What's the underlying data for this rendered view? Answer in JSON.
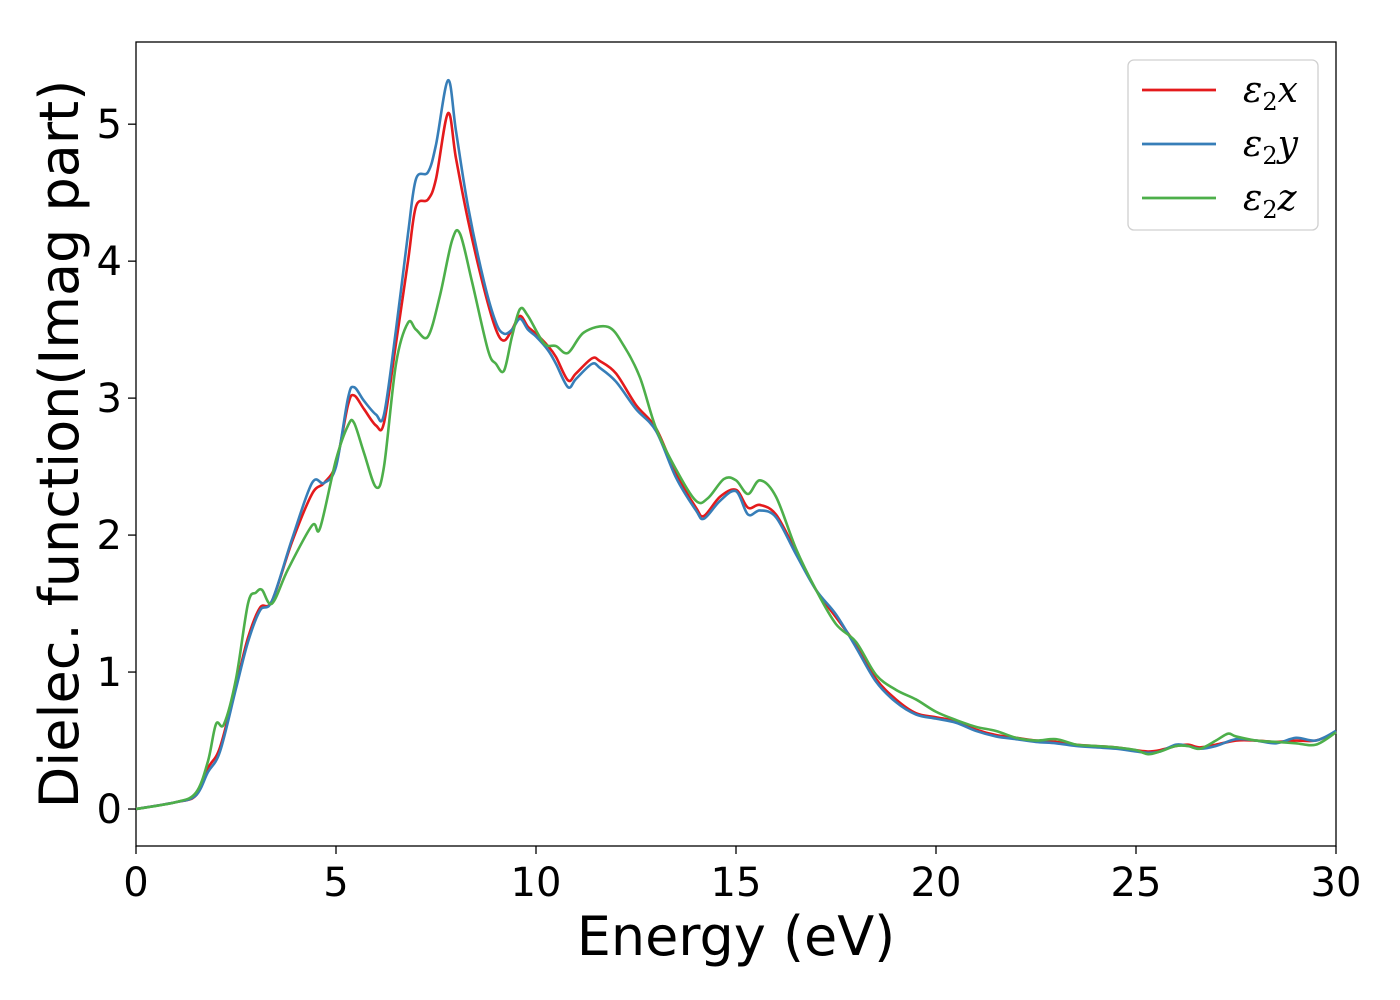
{
  "chart_data": {
    "type": "line",
    "title": "",
    "xlabel": "Energy (eV)",
    "ylabel": "Dielec. function(Imag part)",
    "xlim": [
      0,
      30
    ],
    "ylim": [
      -0.27,
      5.6
    ],
    "xticks": [
      0,
      5,
      10,
      15,
      20,
      25,
      30
    ],
    "xtick_labels": [
      "0",
      "5",
      "10",
      "15",
      "20",
      "25",
      "30"
    ],
    "yticks": [
      0,
      1,
      2,
      3,
      4,
      5
    ],
    "ytick_labels": [
      "0",
      "1",
      "2",
      "3",
      "4",
      "5"
    ],
    "grid": false,
    "legend_position": "top-right",
    "series": [
      {
        "name": "ε2x",
        "legend_base": "ε",
        "legend_sub": "2",
        "legend_suffix": "x",
        "color": "#e41a1c",
        "x": [
          0,
          1,
          1.5,
          1.8,
          2.1,
          2.5,
          2.8,
          3.1,
          3.4,
          3.9,
          4.4,
          4.7,
          5.0,
          5.3,
          5.45,
          5.7,
          6.0,
          6.2,
          6.5,
          6.8,
          7.0,
          7.3,
          7.5,
          7.8,
          8.0,
          8.3,
          8.7,
          9.0,
          9.2,
          9.4,
          9.6,
          9.8,
          10.0,
          10.3,
          10.5,
          10.8,
          11.0,
          11.4,
          11.6,
          12.0,
          12.5,
          13.0,
          13.5,
          14.0,
          14.2,
          14.6,
          15.0,
          15.3,
          15.6,
          16.0,
          16.5,
          17.0,
          17.5,
          18.0,
          18.5,
          19.0,
          19.5,
          20.0,
          20.5,
          21.0,
          21.5,
          22.0,
          22.5,
          23.0,
          23.5,
          24.0,
          24.5,
          25.0,
          25.3,
          25.6,
          26.0,
          26.3,
          26.6,
          27.0,
          27.5,
          28.0,
          28.5,
          29.0,
          29.5,
          30.0
        ],
        "y": [
          0,
          0.05,
          0.1,
          0.3,
          0.45,
          0.9,
          1.25,
          1.47,
          1.52,
          1.95,
          2.3,
          2.38,
          2.52,
          2.95,
          3.02,
          2.92,
          2.8,
          2.82,
          3.4,
          4.0,
          4.4,
          4.45,
          4.6,
          5.08,
          4.75,
          4.3,
          3.8,
          3.5,
          3.42,
          3.5,
          3.6,
          3.52,
          3.47,
          3.38,
          3.3,
          3.13,
          3.18,
          3.29,
          3.27,
          3.18,
          2.95,
          2.78,
          2.45,
          2.2,
          2.14,
          2.28,
          2.33,
          2.2,
          2.22,
          2.15,
          1.88,
          1.6,
          1.4,
          1.2,
          0.95,
          0.8,
          0.7,
          0.67,
          0.64,
          0.58,
          0.54,
          0.52,
          0.5,
          0.49,
          0.47,
          0.46,
          0.45,
          0.43,
          0.42,
          0.43,
          0.46,
          0.47,
          0.45,
          0.47,
          0.5,
          0.5,
          0.49,
          0.5,
          0.5,
          0.56
        ]
      },
      {
        "name": "ε2y",
        "legend_base": "ε",
        "legend_sub": "2",
        "legend_suffix": "y",
        "color": "#377eb8",
        "x": [
          0,
          1,
          1.5,
          1.8,
          2.1,
          2.5,
          2.8,
          3.1,
          3.4,
          3.9,
          4.4,
          4.7,
          5.0,
          5.3,
          5.45,
          5.7,
          6.0,
          6.2,
          6.5,
          6.8,
          7.0,
          7.3,
          7.5,
          7.8,
          8.0,
          8.3,
          8.7,
          9.0,
          9.2,
          9.4,
          9.6,
          9.8,
          10.0,
          10.3,
          10.5,
          10.8,
          11.0,
          11.4,
          11.6,
          12.0,
          12.5,
          13.0,
          13.5,
          14.0,
          14.2,
          14.6,
          15.0,
          15.3,
          15.6,
          16.0,
          16.5,
          17.0,
          17.5,
          18.0,
          18.5,
          19.0,
          19.5,
          20.0,
          20.5,
          21.0,
          21.5,
          22.0,
          22.5,
          23.0,
          23.5,
          24.0,
          24.5,
          25.0,
          25.3,
          25.6,
          26.0,
          26.3,
          26.6,
          27.0,
          27.5,
          28.0,
          28.5,
          29.0,
          29.5,
          30.0
        ],
        "y": [
          0,
          0.05,
          0.1,
          0.27,
          0.42,
          0.88,
          1.22,
          1.45,
          1.52,
          1.97,
          2.38,
          2.38,
          2.5,
          3.0,
          3.08,
          2.98,
          2.88,
          2.88,
          3.5,
          4.2,
          4.6,
          4.65,
          4.85,
          5.32,
          4.95,
          4.4,
          3.85,
          3.55,
          3.47,
          3.5,
          3.58,
          3.5,
          3.45,
          3.35,
          3.25,
          3.08,
          3.14,
          3.25,
          3.22,
          3.12,
          2.92,
          2.76,
          2.42,
          2.18,
          2.12,
          2.25,
          2.32,
          2.15,
          2.18,
          2.13,
          1.86,
          1.6,
          1.42,
          1.18,
          0.93,
          0.78,
          0.69,
          0.66,
          0.63,
          0.57,
          0.53,
          0.51,
          0.49,
          0.48,
          0.46,
          0.45,
          0.44,
          0.42,
          0.41,
          0.42,
          0.47,
          0.46,
          0.44,
          0.46,
          0.51,
          0.5,
          0.48,
          0.52,
          0.5,
          0.57
        ]
      },
      {
        "name": "ε2z",
        "legend_base": "ε",
        "legend_sub": "2",
        "legend_suffix": "z",
        "color": "#4daf4a",
        "x": [
          0,
          1,
          1.5,
          1.8,
          2.0,
          2.2,
          2.5,
          2.8,
          3.0,
          3.15,
          3.4,
          3.8,
          4.4,
          4.6,
          5.0,
          5.3,
          5.45,
          5.7,
          6.0,
          6.2,
          6.5,
          6.8,
          7.0,
          7.3,
          7.6,
          7.9,
          8.1,
          8.4,
          8.8,
          9.0,
          9.2,
          9.4,
          9.6,
          9.8,
          10.2,
          10.5,
          10.8,
          11.2,
          11.8,
          12.2,
          12.6,
          13.0,
          13.5,
          14.0,
          14.3,
          14.7,
          15.0,
          15.3,
          15.6,
          16.0,
          16.5,
          17.0,
          17.5,
          18.0,
          18.5,
          19.0,
          19.5,
          20.0,
          20.5,
          21.0,
          21.5,
          22.0,
          22.5,
          23.0,
          23.5,
          24.0,
          24.5,
          25.0,
          25.3,
          25.6,
          26.0,
          26.3,
          26.6,
          27.0,
          27.3,
          27.5,
          28.0,
          28.5,
          29.0,
          29.5,
          30.0
        ],
        "y": [
          0,
          0.05,
          0.12,
          0.35,
          0.62,
          0.62,
          0.95,
          1.5,
          1.58,
          1.6,
          1.5,
          1.75,
          2.07,
          2.05,
          2.55,
          2.8,
          2.82,
          2.6,
          2.35,
          2.5,
          3.25,
          3.55,
          3.5,
          3.45,
          3.75,
          4.15,
          4.2,
          3.85,
          3.35,
          3.25,
          3.2,
          3.45,
          3.65,
          3.6,
          3.4,
          3.38,
          3.33,
          3.48,
          3.52,
          3.38,
          3.15,
          2.78,
          2.48,
          2.25,
          2.27,
          2.41,
          2.4,
          2.3,
          2.4,
          2.28,
          1.9,
          1.6,
          1.35,
          1.22,
          0.98,
          0.87,
          0.8,
          0.71,
          0.65,
          0.6,
          0.57,
          0.52,
          0.5,
          0.51,
          0.47,
          0.46,
          0.45,
          0.43,
          0.4,
          0.42,
          0.46,
          0.46,
          0.44,
          0.5,
          0.55,
          0.53,
          0.5,
          0.49,
          0.48,
          0.47,
          0.56
        ]
      }
    ]
  }
}
